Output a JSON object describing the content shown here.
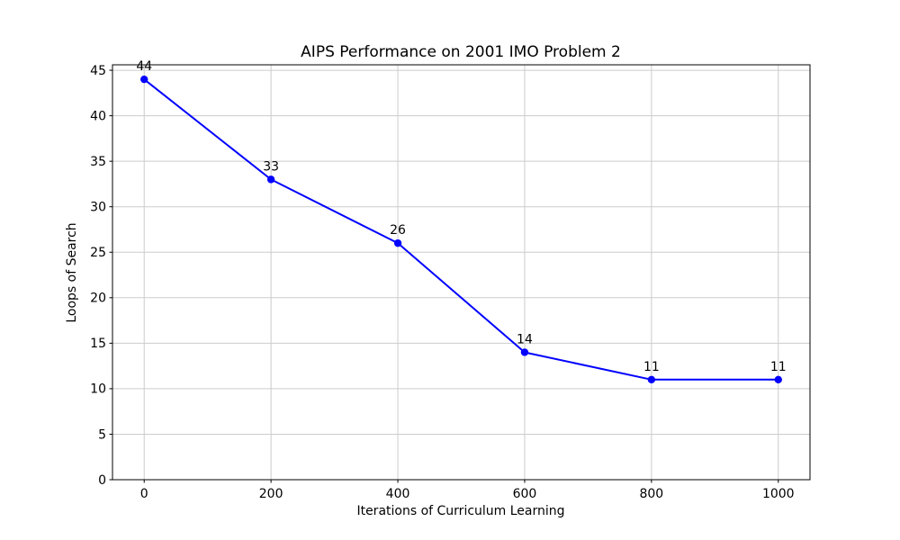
{
  "figure": {
    "background": "#ffffff"
  },
  "chart_data": {
    "type": "line",
    "title": "AIPS Performance on 2001 IMO Problem 2",
    "xlabel": "Iterations of Curriculum Learning",
    "ylabel": "Loops of Search",
    "x": [
      0,
      200,
      400,
      600,
      800,
      1000
    ],
    "y": [
      44,
      33,
      26,
      14,
      11,
      11
    ],
    "point_labels": [
      "44",
      "33",
      "26",
      "14",
      "11",
      "11"
    ],
    "xticks": [
      0,
      200,
      400,
      600,
      800,
      1000
    ],
    "xtick_labels": [
      "0",
      "200",
      "400",
      "600",
      "800",
      "1000"
    ],
    "yticks": [
      0,
      5,
      10,
      15,
      20,
      25,
      30,
      35,
      40,
      45
    ],
    "ytick_labels": [
      "0",
      "5",
      "10",
      "15",
      "20",
      "25",
      "30",
      "35",
      "40",
      "45"
    ],
    "xlim": [
      -50,
      1050
    ],
    "ylim": [
      0,
      45.6
    ],
    "grid": true,
    "legend": "none",
    "marker": "circle",
    "line_color": "#0000ff",
    "marker_color": "#0000ff",
    "grid_color": "#cccccc",
    "axis_color": "#000000",
    "text_color": "#000000"
  }
}
